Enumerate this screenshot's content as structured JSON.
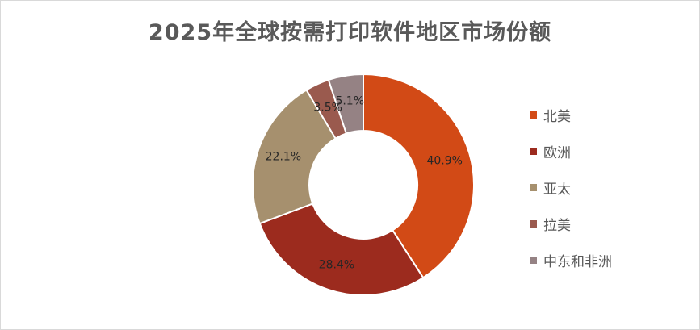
{
  "chart_data": {
    "type": "pie",
    "style": "donut",
    "title": "2025年全球按需打印软件地区市场份额",
    "categories": [
      "北美",
      "欧洲",
      "亚太",
      "拉美",
      "中东和非洲"
    ],
    "values": [
      40.9,
      28.4,
      22.1,
      3.5,
      5.1
    ],
    "labels": [
      "40.9%",
      "28.4%",
      "22.1%",
      "3.5%",
      "5.1%"
    ],
    "colors": [
      "#D24A16",
      "#9C2B1E",
      "#A6906E",
      "#9A5A4E",
      "#958284"
    ],
    "legend_position": "right"
  }
}
